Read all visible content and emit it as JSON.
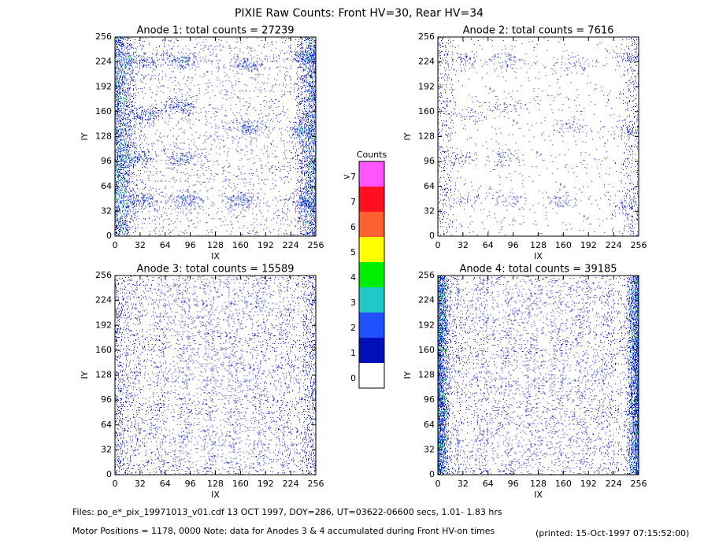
{
  "title": "PIXIE Raw Counts:  Front HV=30, Rear HV=34",
  "footer": [
    "Files: po_e*_pix_19971013_v01.cdf    13 OCT 1997, DOY=286, UT=03622-06600 secs,  1.01- 1.83 hrs",
    "Motor Positions = 1178, 0000   Note: data for Anodes 3 & 4 accumulated during Front HV-on times",
    "(printed: 15-Oct-1997 07:15:52:00)"
  ],
  "chart_data": [
    {
      "type": "heatmap",
      "title": "Anode 1: total counts = 27239",
      "xlabel": "IX",
      "ylabel": "IY",
      "xlim": [
        0,
        256
      ],
      "ylim": [
        0,
        256
      ],
      "xticks": [
        0,
        32,
        64,
        96,
        128,
        160,
        192,
        224,
        256
      ],
      "yticks": [
        0,
        32,
        64,
        96,
        128,
        160,
        192,
        224,
        256
      ]
    },
    {
      "type": "heatmap",
      "title": "Anode 2: total counts = 7616",
      "xlabel": "IX",
      "ylabel": "IY",
      "xlim": [
        0,
        256
      ],
      "ylim": [
        0,
        256
      ],
      "xticks": [
        0,
        32,
        64,
        96,
        128,
        160,
        192,
        224,
        256
      ],
      "yticks": [
        0,
        32,
        64,
        96,
        128,
        160,
        192,
        224,
        256
      ]
    },
    {
      "type": "heatmap",
      "title": "Anode 3: total counts = 15589",
      "xlabel": "IX",
      "ylabel": "IY",
      "xlim": [
        0,
        256
      ],
      "ylim": [
        0,
        256
      ],
      "xticks": [
        0,
        32,
        64,
        96,
        128,
        160,
        192,
        224,
        256
      ],
      "yticks": [
        0,
        32,
        64,
        96,
        128,
        160,
        192,
        224,
        256
      ]
    },
    {
      "type": "heatmap",
      "title": "Anode 4: total counts = 39185",
      "xlabel": "IX",
      "ylabel": "IY",
      "xlim": [
        0,
        256
      ],
      "ylim": [
        0,
        256
      ],
      "xticks": [
        0,
        32,
        64,
        96,
        128,
        160,
        192,
        224,
        256
      ],
      "yticks": [
        0,
        32,
        64,
        96,
        128,
        160,
        192,
        224,
        256
      ]
    },
    {
      "type": "colorbar",
      "title": "Counts",
      "categories": [
        "0",
        "1",
        "2",
        "3",
        "4",
        "5",
        "6",
        "7",
        ">7"
      ],
      "colors": [
        "#ffffff",
        "#0010b8",
        "#2050ff",
        "#20c8c8",
        "#00ee00",
        "#ffff00",
        "#ff6030",
        "#ff1020",
        "#ff55ff"
      ]
    }
  ]
}
